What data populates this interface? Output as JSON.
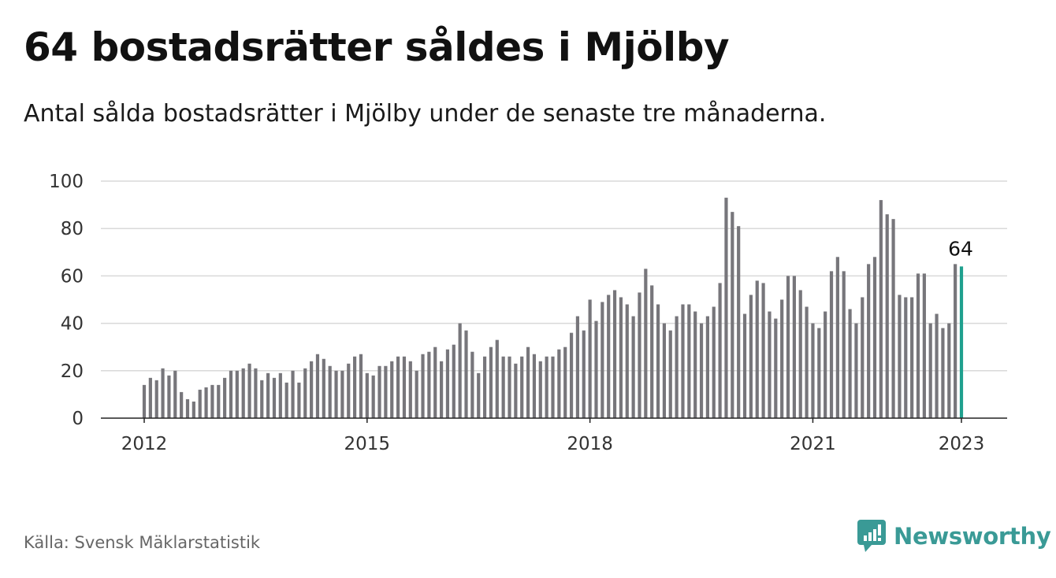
{
  "header": {
    "title": "64 bostadsrätter såldes i Mjölby",
    "subtitle": "Antal sålda bostadsrätter i Mjölby under de senaste tre månaderna."
  },
  "footer": {
    "source": "Källa: Svensk Mäklarstatistik",
    "brand": "Newsworthy"
  },
  "colors": {
    "bar": "#77767b",
    "highlight": "#1fa08e",
    "grid": "#d9d9d9",
    "axis": "#222222",
    "brand": "#3a9a96"
  },
  "chart_data": {
    "type": "bar",
    "title": "64 bostadsrätter såldes i Mjölby",
    "subtitle": "Antal sålda bostadsrätter i Mjölby under de senaste tre månaderna.",
    "x_start": "2012-01",
    "x_end": "2023-01",
    "x_frequency": "monthly",
    "ylim": [
      0,
      100
    ],
    "yticks": [
      0,
      20,
      40,
      60,
      80,
      100
    ],
    "xticks": [
      "2012",
      "2015",
      "2018",
      "2021",
      "2023"
    ],
    "grid": true,
    "highlight": {
      "x": "2023-01",
      "value": 64,
      "label": "64"
    },
    "values": [
      14,
      17,
      16,
      21,
      18,
      20,
      11,
      8,
      7,
      12,
      13,
      14,
      14,
      17,
      20,
      20,
      21,
      23,
      21,
      16,
      19,
      17,
      19,
      15,
      20,
      15,
      21,
      24,
      27,
      25,
      22,
      20,
      20,
      23,
      26,
      27,
      19,
      18,
      22,
      22,
      24,
      26,
      26,
      24,
      20,
      27,
      28,
      30,
      24,
      29,
      31,
      40,
      37,
      28,
      19,
      26,
      30,
      33,
      26,
      26,
      23,
      26,
      30,
      27,
      24,
      26,
      26,
      29,
      30,
      36,
      43,
      37,
      50,
      41,
      49,
      52,
      54,
      51,
      48,
      43,
      53,
      63,
      56,
      48,
      40,
      37,
      43,
      48,
      48,
      45,
      40,
      43,
      47,
      57,
      93,
      87,
      81,
      44,
      52,
      58,
      57,
      45,
      42,
      50,
      60,
      60,
      54,
      47,
      40,
      38,
      45,
      62,
      68,
      62,
      46,
      40,
      51,
      65,
      68,
      92,
      86,
      84,
      52,
      51,
      51,
      61,
      61,
      40,
      44,
      38,
      40,
      65,
      64
    ]
  }
}
